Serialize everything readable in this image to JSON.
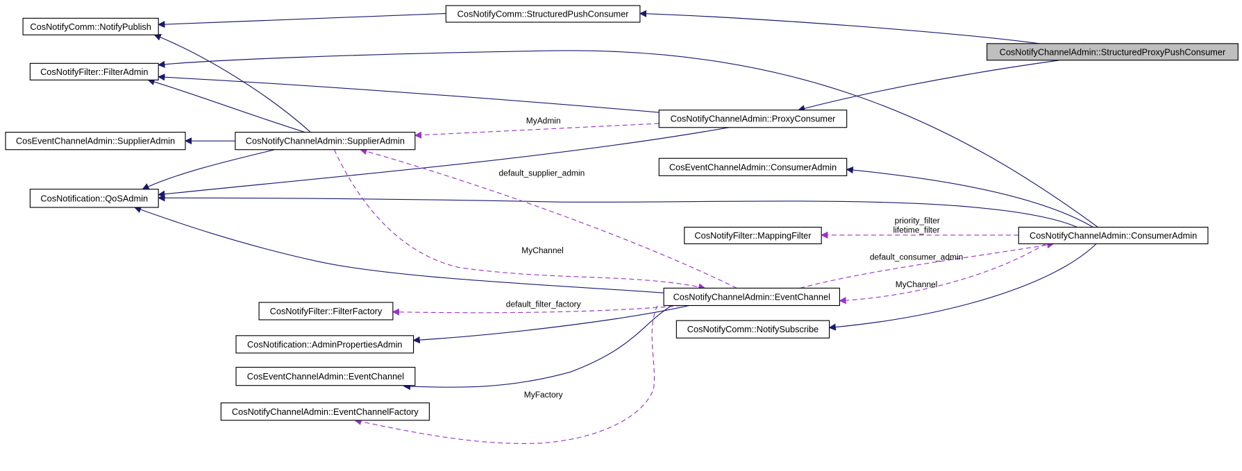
{
  "diagram": {
    "nodes": {
      "structured_proxy_push_consumer": "CosNotifyChannelAdmin::StructuredProxyPushConsumer",
      "structured_push_consumer": "CosNotifyComm::StructuredPushConsumer",
      "notify_publish": "CosNotifyComm::NotifyPublish",
      "filter_admin": "CosNotifyFilter::FilterAdmin",
      "proxy_consumer": "CosNotifyChannelAdmin::ProxyConsumer",
      "event_supplier_admin": "CosEventChannelAdmin::SupplierAdmin",
      "notify_supplier_admin": "CosNotifyChannelAdmin::SupplierAdmin",
      "event_consumer_admin": "CosEventChannelAdmin::ConsumerAdmin",
      "qos_admin": "CosNotification::QoSAdmin",
      "mapping_filter": "CosNotifyFilter::MappingFilter",
      "notify_consumer_admin": "CosNotifyChannelAdmin::ConsumerAdmin",
      "notify_event_channel": "CosNotifyChannelAdmin::EventChannel",
      "filter_factory": "CosNotifyFilter::FilterFactory",
      "notify_subscribe": "CosNotifyComm::NotifySubscribe",
      "admin_properties_admin": "CosNotification::AdminPropertiesAdmin",
      "event_event_channel": "CosEventChannelAdmin::EventChannel",
      "event_channel_factory": "CosNotifyChannelAdmin::EventChannelFactory"
    },
    "edge_labels": {
      "my_admin": "MyAdmin",
      "default_supplier_admin": "default_supplier_admin",
      "priority_filter": "priority_filter",
      "lifetime_filter": "lifetime_filter",
      "default_consumer_admin": "default_consumer_admin",
      "my_channel_supplier": "MyChannel",
      "my_channel_consumer": "MyChannel",
      "default_filter_factory": "default_filter_factory",
      "my_factory": "MyFactory"
    },
    "colors": {
      "inheritance_edge": "#191970",
      "usage_edge": "#9a32cd",
      "focus_node_fill": "#bfbfbf"
    }
  }
}
